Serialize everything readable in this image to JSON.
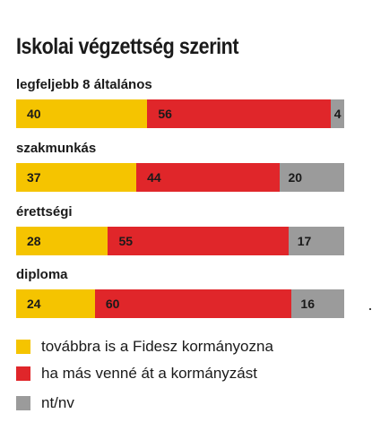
{
  "chart_data": {
    "type": "bar",
    "orientation": "horizontal",
    "stacked": true,
    "title": "Iskolai végzettség szerint",
    "categories": [
      "legfeljebb 8 általános",
      "szakmunkás",
      "érettségi",
      "diploma"
    ],
    "series": [
      {
        "name": "továbbra is a Fidesz kormányozna",
        "color": "#f5c400",
        "values": [
          40,
          37,
          28,
          24
        ]
      },
      {
        "name": "ha más venné át a kormányzást",
        "color": "#e0262a",
        "values": [
          56,
          44,
          55,
          60
        ]
      },
      {
        "name": "nt/nv",
        "color": "#9b9b9b",
        "values": [
          4,
          20,
          17,
          16
        ]
      }
    ],
    "xlim": [
      0,
      100
    ],
    "grid": false,
    "legend": "bottom"
  }
}
